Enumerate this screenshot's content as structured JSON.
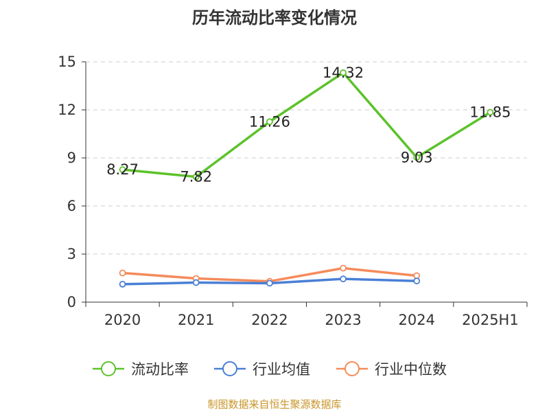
{
  "chart_data": {
    "type": "line",
    "title": "历年流动比率变化情况",
    "categories": [
      "2020",
      "2021",
      "2022",
      "2023",
      "2024",
      "2025H1"
    ],
    "ylim": [
      0,
      15
    ],
    "yticks": [
      "0",
      "3",
      "6",
      "9",
      "12",
      "15"
    ],
    "grid": true,
    "legend_position": "bottom",
    "series": [
      {
        "name": "流动比率",
        "color": "#5cc22a",
        "values": [
          8.27,
          7.82,
          11.26,
          14.32,
          9.03,
          11.85
        ],
        "labels": [
          "8.27",
          "7.82",
          "11.26",
          "14.32",
          "9.03",
          "11.85"
        ]
      },
      {
        "name": "行业均值",
        "color": "#4a7fd6",
        "values": [
          1.12,
          1.22,
          1.18,
          1.45,
          1.32,
          null
        ]
      },
      {
        "name": "行业中位数",
        "color": "#f58b5a",
        "values": [
          1.82,
          1.48,
          1.3,
          2.12,
          1.65,
          null
        ]
      }
    ]
  },
  "footer": {
    "source": "制图数据来自恒生聚源数据库"
  }
}
